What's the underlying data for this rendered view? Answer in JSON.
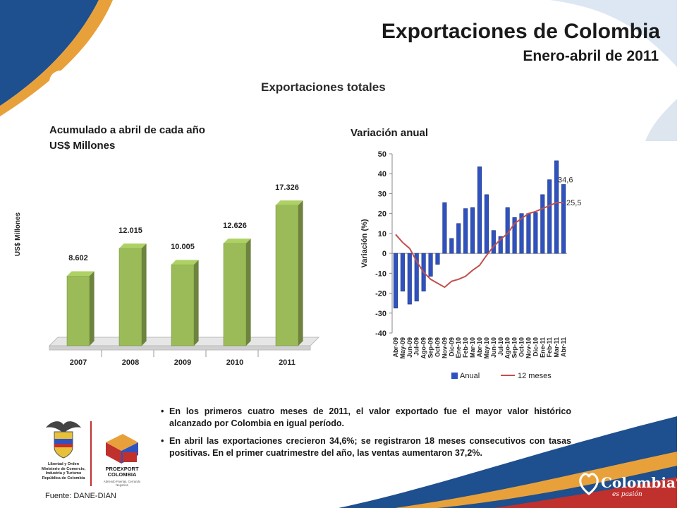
{
  "slide": {
    "title": "Exportaciones de Colombia",
    "subtitle": "Enero-abril de 2011",
    "panel_title": "Exportaciones totales",
    "colors": {
      "bar_green": "#9bbb59",
      "bar_blue": "#2f52c0",
      "line_red": "#c0504d",
      "wave_blue": "#1e4f8e",
      "wave_orange": "#e8a13a",
      "wave_red": "#c0302d"
    }
  },
  "left_chart": {
    "title_line1": "Acumulado a abril de cada año",
    "title_line2": "US$ Millones",
    "ylabel": "US$ Millones"
  },
  "right_chart": {
    "title": "Variación anual",
    "ylabel": "Variación (%)",
    "end_label_anual": "34,6",
    "end_label_12m": "25,5"
  },
  "chart_data": [
    {
      "type": "bar",
      "title": "Acumulado a abril de cada año",
      "ylabel": "US$ Millones",
      "categories": [
        "2007",
        "2008",
        "2009",
        "2010",
        "2011"
      ],
      "values": [
        8602,
        12015,
        10005,
        12626,
        17326
      ],
      "value_labels": [
        "8.602",
        "12.015",
        "10.005",
        "12.626",
        "17.326"
      ],
      "ylim": [
        0,
        20000
      ],
      "grid": false
    },
    {
      "type": "bar",
      "title": "Variación anual",
      "ylabel": "Variación (%)",
      "categories": [
        "Abr-09",
        "May-09",
        "Jun-09",
        "Jul-09",
        "Ago-09",
        "Sep-09",
        "Oct-09",
        "Nov-09",
        "Dic-09",
        "Ene-10",
        "Feb-10",
        "Mar-10",
        "Abr-10",
        "May-10",
        "Jun-10",
        "Jul-10",
        "Ago-10",
        "Sep-10",
        "Oct-10",
        "Nov-10",
        "Dic-10",
        "Ene-11",
        "Feb-11",
        "Mar-11",
        "Abr-11"
      ],
      "series": [
        {
          "name": "Anual",
          "type": "bar",
          "values": [
            -27.5,
            -19,
            -25.5,
            -24,
            -19,
            -11.5,
            -5.5,
            25.5,
            7.5,
            15,
            22.5,
            23,
            43.5,
            29.5,
            11.5,
            8.5,
            23,
            18,
            20,
            20,
            20.5,
            29.5,
            37,
            46.5,
            34.6
          ]
        },
        {
          "name": "12 meses",
          "type": "line",
          "values": [
            9.5,
            5.5,
            2.5,
            -4,
            -9.5,
            -13,
            -15,
            -17,
            -14,
            -13,
            -11.5,
            -8.5,
            -6,
            -1,
            3.5,
            7,
            10,
            15,
            17.5,
            20,
            21,
            22.5,
            24,
            25.5,
            25.5
          ]
        }
      ],
      "ylim": [
        -40,
        50
      ],
      "yticks": [
        50,
        40,
        30,
        20,
        10,
        0,
        -10,
        -20,
        -30,
        -40
      ],
      "grid": false,
      "legend": "bottom"
    }
  ],
  "footer": {
    "bullets": [
      "En los primeros cuatro meses de 2011, el valor exportado fue el mayor valor histórico alcanzado por Colombia en igual período.",
      "En abril las exportaciones crecieron 34,6%; se registraron 18 meses consecutivos con tasas positivas. En el primer cuatrimestre del año, las ventas aumentaron 37,2%."
    ],
    "source": "Fuente: DANE-DIAN"
  },
  "logos": {
    "gov_text": "Libertad y Orden\nMinisterio de Comercio, Industria y Turismo\nRepública de Colombia",
    "proexport_name": "PROEXPORT\nCOLOMBIA",
    "proexport_tagline": "Abriendo Puertas, Cerrando Negocios",
    "colombia_brand": "Colombia",
    "colombia_registered": "®",
    "colombia_tagline": "es pasión"
  }
}
